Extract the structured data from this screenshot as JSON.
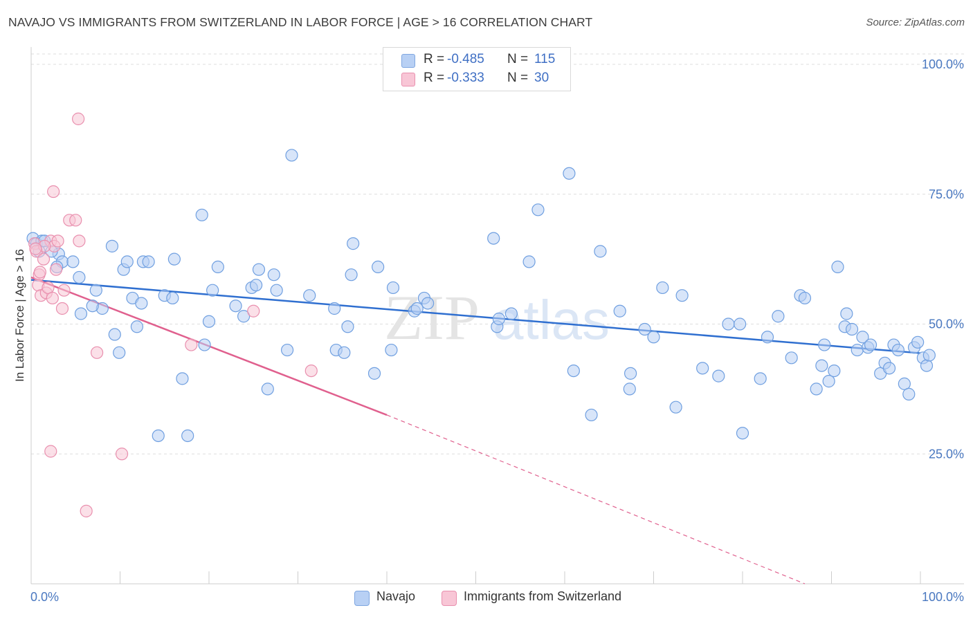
{
  "title": "NAVAJO VS IMMIGRANTS FROM SWITZERLAND IN LABOR FORCE | AGE > 16 CORRELATION CHART",
  "source": "Source: ZipAtlas.com",
  "watermark": "ZIPatlas",
  "legend": {
    "rows": [
      {
        "r_label": "R =",
        "r_value": "-0.485",
        "n_label": "N =",
        "n_value": "115",
        "color": "#b8d0f4",
        "border": "#7ea6e0"
      },
      {
        "r_label": "R =",
        "r_value": "-0.333",
        "n_label": "N =",
        "n_value": "30",
        "color": "#f8c6d6",
        "border": "#e98fae"
      }
    ]
  },
  "bottom_legend": [
    {
      "label": "Navajo",
      "color": "#b8d0f4",
      "border": "#7ea6e0"
    },
    {
      "label": "Immigrants from Switzerland",
      "color": "#f8c6d6",
      "border": "#e98fae"
    }
  ],
  "chart_data": {
    "type": "scatter",
    "title": "NAVAJO VS IMMIGRANTS FROM SWITZERLAND IN LABOR FORCE | AGE > 16 CORRELATION CHART",
    "xlabel": "",
    "ylabel": "In Labor Force | Age > 16",
    "x_tick_labels": [
      "0.0%",
      "100.0%"
    ],
    "y_tick_labels": [
      "100.0%",
      "75.0%",
      "50.0%",
      "25.0%"
    ],
    "xlim": [
      0,
      100
    ],
    "ylim": [
      0,
      102
    ],
    "grid": true,
    "series": [
      {
        "name": "Navajo",
        "color": "#6f9fe0",
        "fill": "#b8d0f4",
        "points": [
          [
            0.2,
            66.5
          ],
          [
            0.6,
            65.5
          ],
          [
            1.2,
            66.0
          ],
          [
            0.9,
            64.0
          ],
          [
            3.1,
            63.5
          ],
          [
            3.5,
            62.0
          ],
          [
            2.9,
            61.0
          ],
          [
            2.3,
            64.0
          ],
          [
            1.5,
            66.0
          ],
          [
            4.7,
            62.0
          ],
          [
            5.6,
            52.0
          ],
          [
            5.4,
            59.0
          ],
          [
            7.3,
            56.5
          ],
          [
            8.0,
            53.0
          ],
          [
            6.9,
            53.5
          ],
          [
            9.1,
            65.0
          ],
          [
            9.4,
            48.0
          ],
          [
            9.9,
            44.5
          ],
          [
            10.4,
            60.5
          ],
          [
            10.8,
            62.0
          ],
          [
            11.4,
            55.0
          ],
          [
            11.9,
            49.5
          ],
          [
            12.4,
            54.0
          ],
          [
            12.6,
            62.0
          ],
          [
            13.2,
            62.0
          ],
          [
            14.3,
            28.5
          ],
          [
            15.0,
            55.5
          ],
          [
            15.9,
            55.0
          ],
          [
            16.1,
            62.5
          ],
          [
            17.0,
            39.5
          ],
          [
            17.6,
            28.5
          ],
          [
            19.2,
            71.0
          ],
          [
            19.5,
            46.0
          ],
          [
            20.0,
            50.5
          ],
          [
            20.4,
            56.5
          ],
          [
            21.0,
            61.0
          ],
          [
            23.0,
            53.5
          ],
          [
            23.9,
            51.5
          ],
          [
            24.8,
            57.0
          ],
          [
            25.3,
            57.5
          ],
          [
            25.6,
            60.5
          ],
          [
            26.6,
            37.5
          ],
          [
            27.3,
            59.5
          ],
          [
            27.6,
            56.5
          ],
          [
            28.8,
            45.0
          ],
          [
            29.3,
            82.5
          ],
          [
            31.3,
            55.5
          ],
          [
            34.1,
            53.0
          ],
          [
            34.3,
            45.0
          ],
          [
            35.2,
            44.5
          ],
          [
            35.6,
            49.5
          ],
          [
            36.0,
            59.5
          ],
          [
            36.2,
            65.5
          ],
          [
            38.6,
            40.5
          ],
          [
            39.0,
            61.0
          ],
          [
            40.5,
            45.0
          ],
          [
            40.7,
            57.0
          ],
          [
            43.1,
            52.5
          ],
          [
            44.2,
            55.0
          ],
          [
            44.6,
            54.0
          ],
          [
            43.4,
            53.0
          ],
          [
            52.0,
            66.5
          ],
          [
            52.4,
            49.5
          ],
          [
            52.6,
            51.0
          ],
          [
            56.0,
            62.0
          ],
          [
            57.0,
            72.0
          ],
          [
            60.5,
            79.0
          ],
          [
            61.0,
            41.0
          ],
          [
            63.0,
            32.5
          ],
          [
            64.0,
            64.0
          ],
          [
            66.2,
            52.5
          ],
          [
            67.3,
            37.5
          ],
          [
            67.4,
            40.5
          ],
          [
            69.0,
            49.0
          ],
          [
            70.0,
            47.5
          ],
          [
            71.0,
            57.0
          ],
          [
            72.5,
            34.0
          ],
          [
            73.2,
            55.5
          ],
          [
            75.5,
            41.5
          ],
          [
            77.3,
            40.0
          ],
          [
            78.4,
            50.0
          ],
          [
            79.7,
            50.0
          ],
          [
            80.0,
            29.0
          ],
          [
            82.0,
            39.5
          ],
          [
            82.8,
            47.5
          ],
          [
            84.0,
            51.5
          ],
          [
            85.5,
            43.5
          ],
          [
            86.5,
            55.5
          ],
          [
            87.0,
            55.0
          ],
          [
            88.3,
            37.5
          ],
          [
            88.9,
            42.0
          ],
          [
            89.2,
            46.0
          ],
          [
            89.7,
            39.0
          ],
          [
            90.3,
            41.0
          ],
          [
            90.7,
            61.0
          ],
          [
            91.5,
            49.5
          ],
          [
            91.7,
            52.0
          ],
          [
            92.3,
            49.0
          ],
          [
            92.9,
            45.0
          ],
          [
            93.5,
            47.5
          ],
          [
            94.1,
            45.5
          ],
          [
            94.4,
            46.0
          ],
          [
            95.5,
            40.5
          ],
          [
            96.0,
            42.5
          ],
          [
            96.5,
            41.5
          ],
          [
            97.0,
            46.0
          ],
          [
            97.5,
            45.0
          ],
          [
            98.2,
            38.5
          ],
          [
            98.7,
            36.5
          ],
          [
            99.3,
            45.5
          ],
          [
            99.7,
            46.5
          ],
          [
            100.3,
            43.5
          ],
          [
            100.7,
            42.0
          ],
          [
            101.0,
            44.0
          ],
          [
            54.0,
            52.0
          ]
        ],
        "trend": {
          "x": [
            0,
            100
          ],
          "y": [
            58.5,
            44.4
          ],
          "dashed_from": null
        }
      },
      {
        "name": "Immigrants from Switzerland",
        "color": "#e98fae",
        "fill": "#f8c6d6",
        "points": [
          [
            0.4,
            65.5
          ],
          [
            0.6,
            64.0
          ],
          [
            0.9,
            59.5
          ],
          [
            0.8,
            57.5
          ],
          [
            1.1,
            55.5
          ],
          [
            1.4,
            62.5
          ],
          [
            1.7,
            56.0
          ],
          [
            1.9,
            57.0
          ],
          [
            2.2,
            66.0
          ],
          [
            2.6,
            65.0
          ],
          [
            2.4,
            55.0
          ],
          [
            2.5,
            75.5
          ],
          [
            2.8,
            60.5
          ],
          [
            3.0,
            66.0
          ],
          [
            3.5,
            53.0
          ],
          [
            3.7,
            56.5
          ],
          [
            4.3,
            70.0
          ],
          [
            5.0,
            70.0
          ],
          [
            5.4,
            66.0
          ],
          [
            5.3,
            89.5
          ],
          [
            6.2,
            14.0
          ],
          [
            7.4,
            44.5
          ],
          [
            10.2,
            25.0
          ],
          [
            18.0,
            46.0
          ],
          [
            25.0,
            52.5
          ],
          [
            31.5,
            41.0
          ],
          [
            2.2,
            25.5
          ],
          [
            1.0,
            60.0
          ],
          [
            1.5,
            65.0
          ],
          [
            0.5,
            64.5
          ]
        ],
        "trend": {
          "x": [
            0,
            40
          ],
          "y": [
            59.0,
            32.5
          ],
          "dashed_to": [
            87,
            0
          ]
        }
      }
    ]
  }
}
